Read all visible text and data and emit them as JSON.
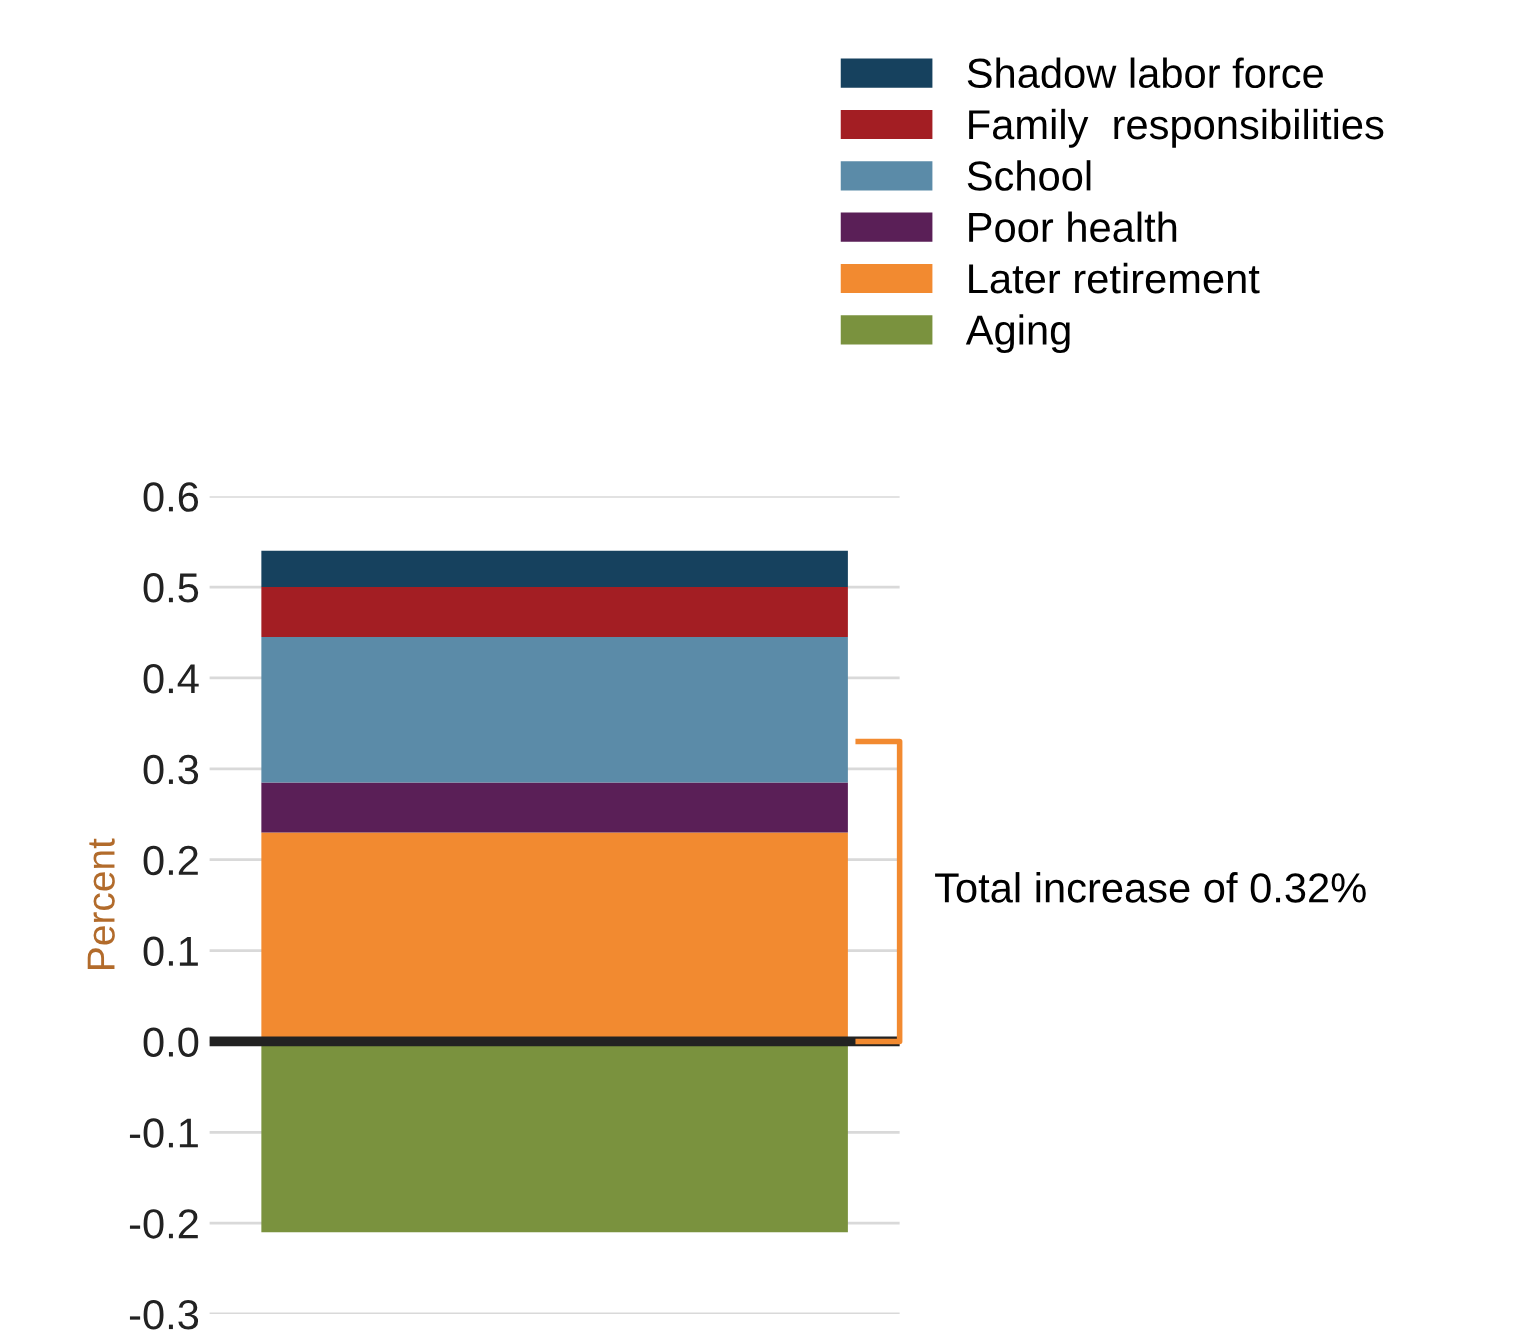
{
  "chart_data": {
    "type": "bar",
    "stacked": true,
    "ylabel": "Percent",
    "categories": [
      null
    ],
    "series": [
      {
        "name": "Aging",
        "color": "#7a923e",
        "values": [
          -0.21
        ]
      },
      {
        "name": "Later retirement",
        "color": "#f28a30",
        "values": [
          0.23
        ]
      },
      {
        "name": "Poor health",
        "color": "#5a1f57",
        "values": [
          0.055
        ]
      },
      {
        "name": "School",
        "color": "#5b8ba8",
        "values": [
          0.16
        ]
      },
      {
        "name": "Family  responsibilities",
        "color": "#a31e23",
        "values": [
          0.055
        ]
      },
      {
        "name": "Shadow labor force",
        "color": "#16415e",
        "values": [
          0.04
        ]
      }
    ],
    "ylim": [
      -0.3,
      0.6
    ],
    "yticks": [
      {
        "value": -0.3,
        "label": "-0.3"
      },
      {
        "value": -0.2,
        "label": "-0.2"
      },
      {
        "value": -0.1,
        "label": "-0.1"
      },
      {
        "value": 0,
        "label": "0.0"
      },
      {
        "value": 0.1,
        "label": "0.1"
      },
      {
        "value": 0.2,
        "label": "0.2"
      },
      {
        "value": 0.3,
        "label": "0.3"
      },
      {
        "value": 0.4,
        "label": "0.4"
      },
      {
        "value": 0.5,
        "label": "0.5"
      },
      {
        "value": 0.6,
        "label": "0.6"
      }
    ],
    "ref_lines": [
      {
        "axis": "y",
        "value": 0,
        "color": "#222222"
      }
    ],
    "annotations": [
      "Total increase of 0.32%"
    ],
    "grid": "y",
    "legend": "top"
  }
}
